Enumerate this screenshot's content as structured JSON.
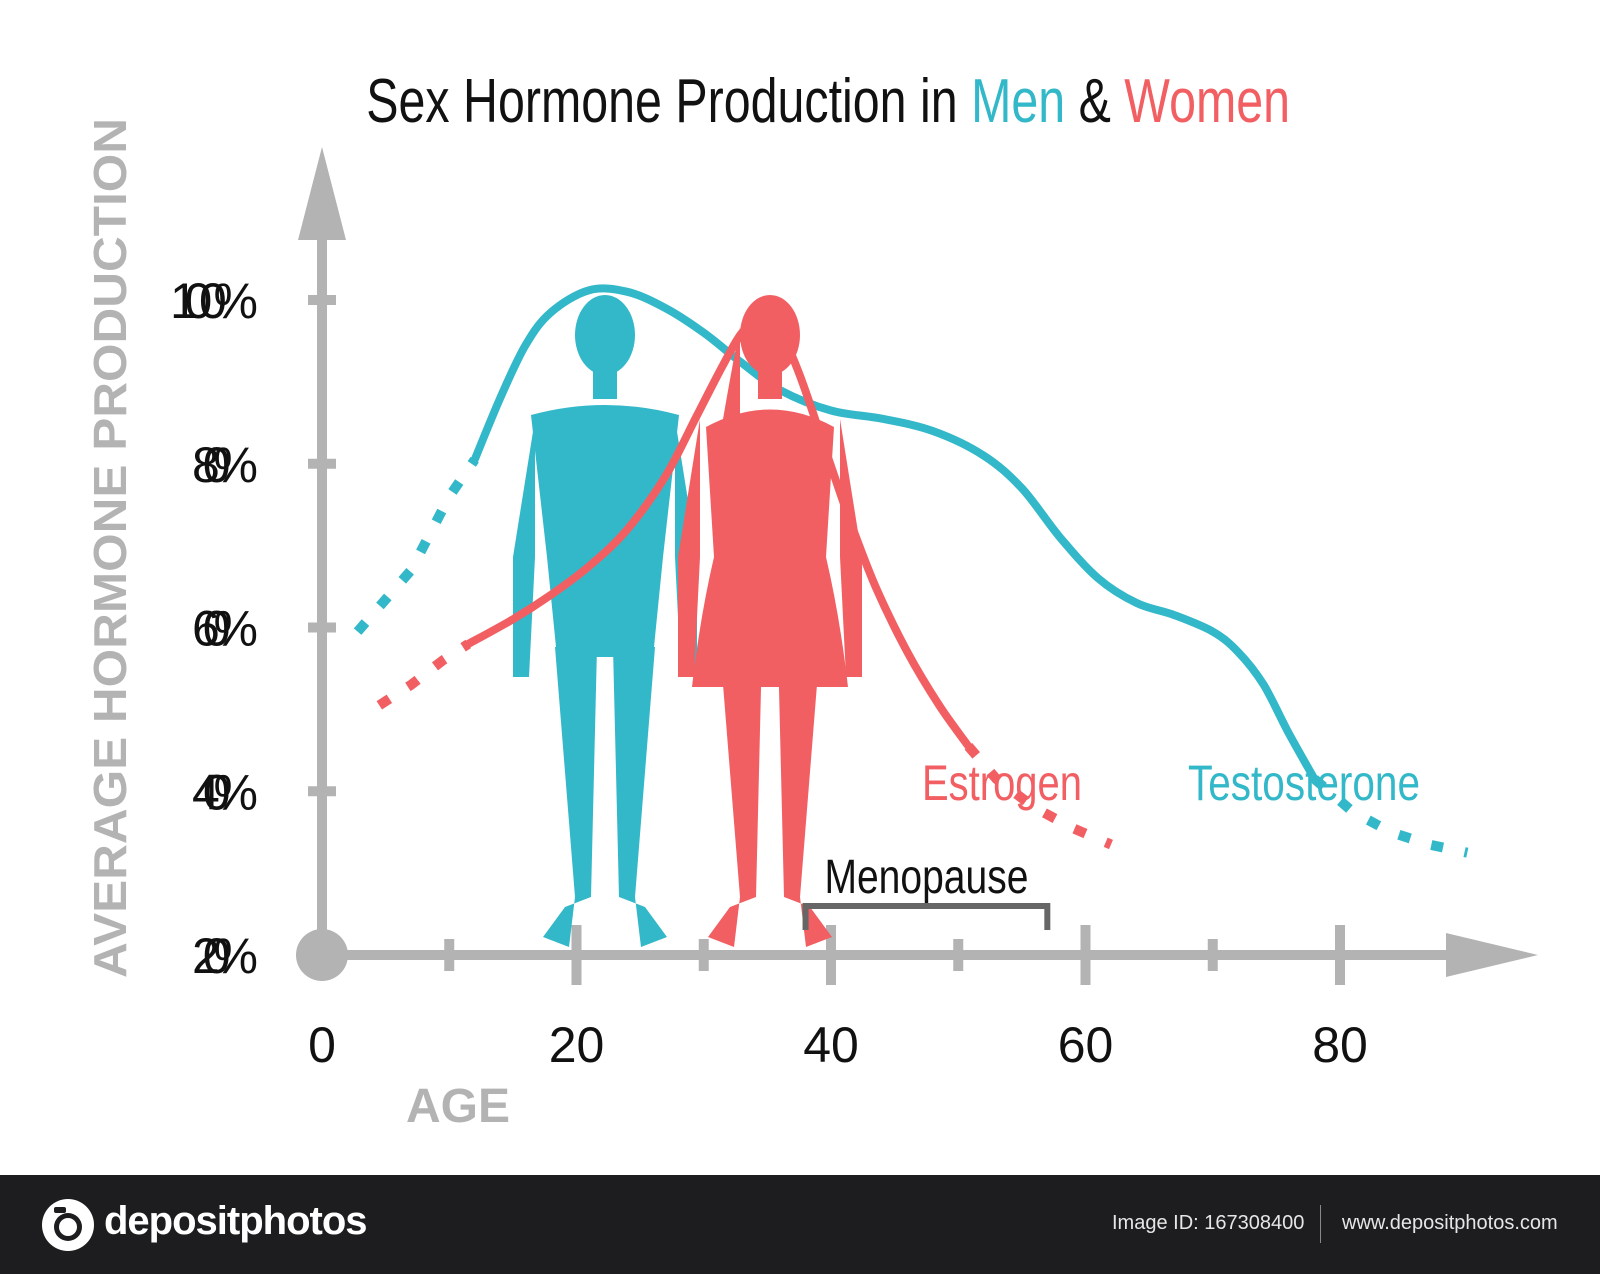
{
  "title": {
    "prefix": "Sex Hormone Production in ",
    "men": "Men",
    "amp": " & ",
    "women": "Women"
  },
  "colors": {
    "men": "#33b8c9",
    "women": "#f25f63",
    "axis": "#b3b3b3",
    "text": "#111111",
    "bracket": "#666666"
  },
  "icons": [
    "male-silhouette-icon",
    "female-silhouette-icon",
    "camera-logo-icon"
  ],
  "footer": {
    "brand": "depositphotos",
    "image_id": "Image ID: 167308400",
    "site": "www.depositphotos.com"
  },
  "chart_data": {
    "type": "line",
    "ylabel": "AVERAGE HORMONE PRODUCTION",
    "xlabel": "AGE",
    "xlim": [
      0,
      95
    ],
    "ylim": [
      20,
      100
    ],
    "x_ticks": [
      0,
      20,
      40,
      60,
      80
    ],
    "y_ticks": [
      "20%",
      "40%",
      "60%",
      "80%",
      "100%"
    ],
    "y_tick_values": [
      20,
      40,
      60,
      80,
      100
    ],
    "grid": false,
    "series": [
      {
        "name": "Testosterone",
        "color": "#33b8c9",
        "dotted": [
          [
            2.8,
            59.5
          ],
          [
            7,
            67
          ],
          [
            10,
            76
          ],
          [
            12,
            80.5
          ]
        ],
        "solid": [
          [
            12,
            80.5
          ],
          [
            14,
            88
          ],
          [
            16,
            94.5
          ],
          [
            18,
            98.5
          ],
          [
            21,
            101.2
          ],
          [
            24,
            101
          ],
          [
            27,
            99
          ],
          [
            30,
            96
          ],
          [
            33,
            92.3
          ],
          [
            36,
            89
          ],
          [
            40,
            86.5
          ],
          [
            44,
            85.5
          ],
          [
            48,
            84
          ],
          [
            52,
            81
          ],
          [
            55,
            77
          ],
          [
            58,
            71
          ],
          [
            61,
            66
          ],
          [
            64,
            63
          ],
          [
            67,
            61.5
          ],
          [
            70,
            59.5
          ],
          [
            72,
            57
          ],
          [
            74,
            53
          ],
          [
            76,
            47
          ],
          [
            78,
            41.5
          ]
        ],
        "dotted_end": [
          [
            78,
            41.5
          ],
          [
            81,
            37.5
          ],
          [
            84,
            35
          ],
          [
            87,
            33.5
          ],
          [
            90,
            32.5
          ]
        ]
      },
      {
        "name": "Estrogen",
        "color": "#f25f63",
        "dotted": [
          [
            4.5,
            50.5
          ],
          [
            7,
            53
          ],
          [
            9.5,
            56
          ],
          [
            11.5,
            58
          ]
        ],
        "solid": [
          [
            11.5,
            58
          ],
          [
            15,
            61
          ],
          [
            18,
            64
          ],
          [
            21,
            67.5
          ],
          [
            24,
            72
          ],
          [
            27,
            78.5
          ],
          [
            29.5,
            86
          ],
          [
            31.5,
            92
          ],
          [
            33,
            96
          ],
          [
            34.5,
            97.5
          ],
          [
            36,
            96
          ],
          [
            37.5,
            91
          ],
          [
            39.5,
            82
          ],
          [
            41.5,
            73
          ],
          [
            43.5,
            65
          ],
          [
            46,
            57
          ],
          [
            48.5,
            50.5
          ],
          [
            50.8,
            45.5
          ]
        ],
        "dotted_end": [
          [
            50.8,
            45.5
          ],
          [
            53,
            41.5
          ],
          [
            56,
            38
          ],
          [
            59,
            35.5
          ],
          [
            62,
            33.5
          ]
        ]
      }
    ],
    "series_labels": [
      "Estrogen",
      "Testosterone"
    ],
    "annotations": [
      {
        "text": "Menopause",
        "x_start": 38,
        "x_end": 57
      }
    ]
  }
}
